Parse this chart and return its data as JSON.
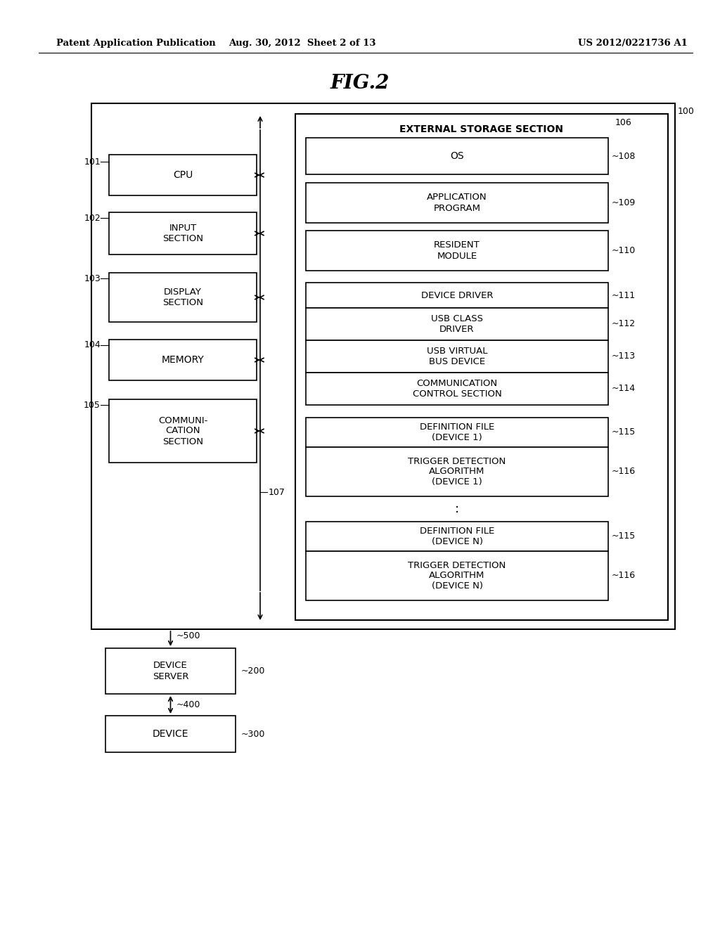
{
  "header_left": "Patent Application Publication",
  "header_center": "Aug. 30, 2012  Sheet 2 of 13",
  "header_right": "US 2012/0221736 A1",
  "title": "FIG.2",
  "bg_color": "#ffffff",
  "fig_w": 10.24,
  "fig_h": 13.2,
  "dpi": 100
}
